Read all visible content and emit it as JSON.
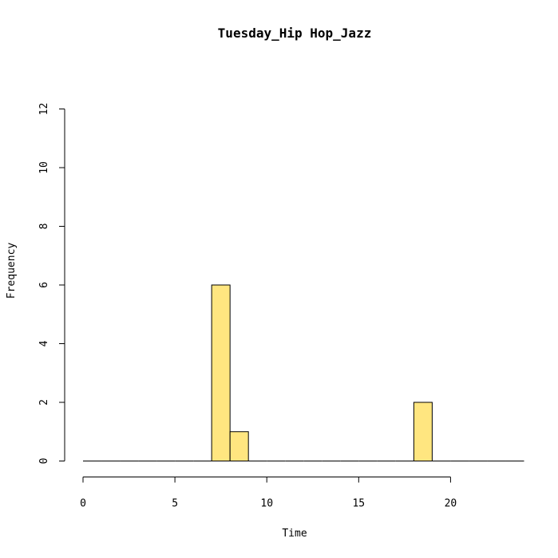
{
  "chart_data": {
    "type": "bar",
    "title": "Tuesday_Hip Hop_Jazz",
    "xlabel": "Time",
    "ylabel": "Frequency",
    "bar_color": "#ffe680",
    "bin_width": 1,
    "bins": [
      {
        "start": 0,
        "end": 1,
        "count": 0
      },
      {
        "start": 1,
        "end": 2,
        "count": 0
      },
      {
        "start": 2,
        "end": 3,
        "count": 0
      },
      {
        "start": 3,
        "end": 4,
        "count": 0
      },
      {
        "start": 4,
        "end": 5,
        "count": 0
      },
      {
        "start": 5,
        "end": 6,
        "count": 0
      },
      {
        "start": 6,
        "end": 7,
        "count": 0
      },
      {
        "start": 7,
        "end": 8,
        "count": 6
      },
      {
        "start": 8,
        "end": 9,
        "count": 1
      },
      {
        "start": 9,
        "end": 10,
        "count": 0
      },
      {
        "start": 10,
        "end": 11,
        "count": 0
      },
      {
        "start": 11,
        "end": 12,
        "count": 0
      },
      {
        "start": 12,
        "end": 13,
        "count": 0
      },
      {
        "start": 13,
        "end": 14,
        "count": 0
      },
      {
        "start": 14,
        "end": 15,
        "count": 0
      },
      {
        "start": 15,
        "end": 16,
        "count": 0
      },
      {
        "start": 16,
        "end": 17,
        "count": 0
      },
      {
        "start": 17,
        "end": 18,
        "count": 0
      },
      {
        "start": 18,
        "end": 19,
        "count": 2
      },
      {
        "start": 19,
        "end": 20,
        "count": 0
      },
      {
        "start": 20,
        "end": 21,
        "count": 0
      },
      {
        "start": 21,
        "end": 22,
        "count": 0
      },
      {
        "start": 22,
        "end": 23,
        "count": 0
      },
      {
        "start": 23,
        "end": 24,
        "count": 0
      }
    ],
    "xlim": [
      0,
      24
    ],
    "ylim": [
      0,
      12
    ],
    "x_ticks": [
      0,
      5,
      10,
      15,
      20
    ],
    "y_ticks": [
      0,
      2,
      4,
      6,
      8,
      10,
      12
    ],
    "grid": false,
    "legend": "none"
  }
}
